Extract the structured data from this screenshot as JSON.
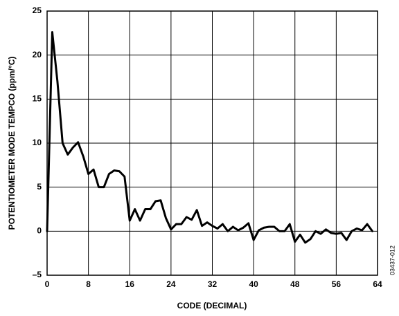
{
  "chart_data": {
    "type": "line",
    "xlabel": "CODE (DECIMAL)",
    "ylabel": "POTENTIOMETER MODE TEMPCO (ppm/°C)",
    "annotation": "03437-012",
    "x": [
      0,
      1,
      2,
      3,
      4,
      5,
      6,
      7,
      8,
      9,
      10,
      11,
      12,
      13,
      14,
      15,
      16,
      17,
      18,
      19,
      20,
      21,
      22,
      23,
      24,
      25,
      26,
      27,
      28,
      29,
      30,
      31,
      32,
      33,
      34,
      35,
      36,
      37,
      38,
      39,
      40,
      41,
      42,
      43,
      44,
      45,
      46,
      47,
      48,
      49,
      50,
      51,
      52,
      53,
      54,
      55,
      56,
      57,
      58,
      59,
      60,
      61,
      62,
      63
    ],
    "series": [
      {
        "name": "tempco",
        "color": "#000000",
        "values": [
          0,
          22.6,
          17,
          10,
          8.7,
          9.5,
          10.1,
          8.5,
          6.5,
          7.0,
          5.0,
          5.0,
          6.5,
          6.9,
          6.8,
          6.2,
          1.2,
          2.5,
          1.2,
          2.5,
          2.5,
          3.4,
          3.5,
          1.5,
          0.2,
          0.8,
          0.8,
          1.6,
          1.3,
          2.4,
          0.6,
          1.0,
          0.6,
          0.3,
          0.8,
          0,
          0.5,
          0.1,
          0.4,
          0.9,
          -1.0,
          0.1,
          0.4,
          0.5,
          0.5,
          0,
          0,
          0.8,
          -1.2,
          -0.4,
          -1.3,
          -0.9,
          0,
          -0.3,
          0.2,
          -0.2,
          -0.3,
          -0.2,
          -1.0,
          0,
          0.3,
          0.1,
          0.8,
          0
        ]
      }
    ],
    "xlim": [
      0,
      64
    ],
    "xticks": [
      0,
      8,
      16,
      24,
      32,
      40,
      48,
      56,
      64
    ],
    "ylim": [
      -5,
      25
    ],
    "yticks": [
      {
        "value": -5,
        "label": "–5"
      },
      0,
      5,
      10,
      15,
      20,
      25
    ],
    "grid": true
  }
}
